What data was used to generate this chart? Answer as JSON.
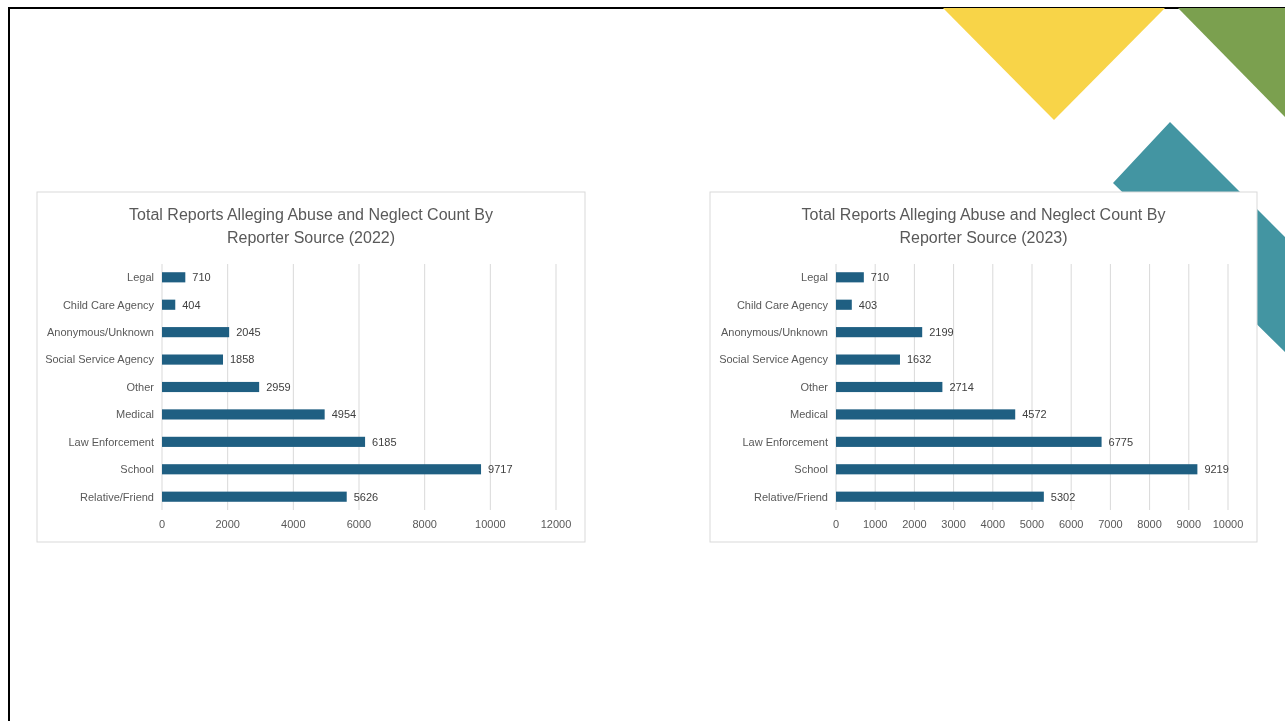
{
  "chart_data": [
    {
      "type": "bar",
      "orientation": "horizontal",
      "title": "Total Reports Alleging Abuse and Neglect Count By Reporter Source (2022)",
      "categories": [
        "Legal",
        "Child Care Agency",
        "Anonymous/Unknown",
        "Social Service Agency",
        "Other",
        "Medical",
        "Law Enforcement",
        "School",
        "Relative/Friend"
      ],
      "values": [
        710,
        404,
        2045,
        1858,
        2959,
        4954,
        6185,
        9717,
        5626
      ],
      "color": "#1f5f82",
      "xlim": [
        0,
        12000
      ],
      "xticks": [
        0,
        2000,
        4000,
        6000,
        8000,
        10000,
        12000
      ],
      "grid": "x",
      "data_labels": true
    },
    {
      "type": "bar",
      "orientation": "horizontal",
      "title": "Total Reports Alleging Abuse and Neglect Count By Reporter Source (2023)",
      "categories": [
        "Legal",
        "Child Care Agency",
        "Anonymous/Unknown",
        "Social Service Agency",
        "Other",
        "Medical",
        "Law Enforcement",
        "School",
        "Relative/Friend"
      ],
      "values": [
        710,
        403,
        2199,
        1632,
        2714,
        4572,
        6775,
        9219,
        5302
      ],
      "color": "#1f5f82",
      "xlim": [
        0,
        10000
      ],
      "xticks": [
        0,
        1000,
        2000,
        3000,
        4000,
        5000,
        6000,
        7000,
        8000,
        9000,
        10000
      ],
      "grid": "x",
      "data_labels": true
    }
  ]
}
